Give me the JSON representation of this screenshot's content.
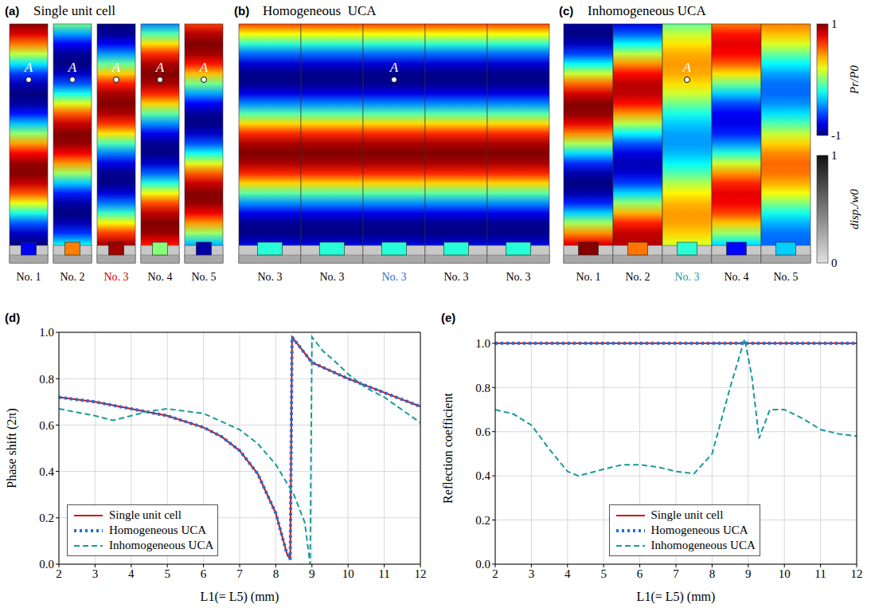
{
  "figure": {
    "panels": [
      {
        "letter": "(a)",
        "title": "Single unit cell",
        "cells": [
          {
            "label": "No. 1",
            "color": "#000000",
            "point": "A"
          },
          {
            "label": "No. 2",
            "color": "#000000",
            "point": "A"
          },
          {
            "label": "No. 3",
            "color": "#d00000",
            "point": "A"
          },
          {
            "label": "No. 4",
            "color": "#000000",
            "point": "A"
          },
          {
            "label": "No. 5",
            "color": "#000000",
            "point": "A"
          }
        ]
      },
      {
        "letter": "(b)",
        "title": "Homogeneous  UCA",
        "cells": [
          {
            "label": "No. 3",
            "color": "#000000"
          },
          {
            "label": "No. 3",
            "color": "#000000"
          },
          {
            "label": "No. 3",
            "color": "#1f6fd1",
            "point": "A"
          },
          {
            "label": "No. 3",
            "color": "#000000"
          },
          {
            "label": "No. 3",
            "color": "#000000"
          }
        ]
      },
      {
        "letter": "(c)",
        "title": "Inhomogeneous UCA",
        "cells": [
          {
            "label": "No. 1",
            "color": "#000000"
          },
          {
            "label": "No. 2",
            "color": "#000000"
          },
          {
            "label": "No. 3",
            "color": "#1a9a9a",
            "point": "A"
          },
          {
            "label": "No. 4",
            "color": "#000000"
          },
          {
            "label": "No. 5",
            "color": "#000000"
          }
        ]
      }
    ],
    "colorbars": [
      {
        "label": "Pr/P0",
        "ticks": [
          1,
          -1
        ]
      },
      {
        "label": "disp./w0",
        "ticks": [
          1,
          0
        ]
      }
    ]
  },
  "chart_data": [
    {
      "type": "line",
      "title": "(d)",
      "x_label": "L1(= L5) (mm)",
      "y_label": "Phase shift (2π)",
      "xlim": [
        2,
        12
      ],
      "xticks": [
        2,
        3,
        4,
        5,
        6,
        7,
        8,
        9,
        10,
        11,
        12
      ],
      "ylim": [
        0,
        1
      ],
      "yticks": [
        {
          "value": 0,
          "label": "0.0"
        },
        {
          "value": 0.2,
          "label": "0.2"
        },
        {
          "value": 0.4,
          "label": "0.4"
        },
        {
          "value": 0.6,
          "label": "0.6"
        },
        {
          "value": 0.8,
          "label": "0.8"
        },
        {
          "value": 1,
          "label": "1.0"
        }
      ],
      "grid": true,
      "legend": "lower left",
      "series": [
        {
          "name": "Single unit cell",
          "color": "#d01010",
          "line_style": "solid",
          "x": [
            2,
            3,
            4,
            5,
            6,
            6.5,
            7,
            7.5,
            8,
            8.3,
            8.4,
            8.45,
            9,
            10,
            11,
            12
          ],
          "values": [
            0.72,
            0.7,
            0.67,
            0.64,
            0.59,
            0.55,
            0.49,
            0.39,
            0.22,
            0.05,
            0.02,
            0.98,
            0.87,
            0.8,
            0.74,
            0.68
          ]
        },
        {
          "name": "Homogeneous UCA",
          "color": "#1f6fe0",
          "line_style": "dotted",
          "x": [
            2,
            3,
            4,
            5,
            6,
            6.5,
            7,
            7.5,
            8,
            8.3,
            8.4,
            8.45,
            9,
            10,
            11,
            12
          ],
          "values": [
            0.72,
            0.7,
            0.67,
            0.64,
            0.59,
            0.55,
            0.49,
            0.39,
            0.22,
            0.05,
            0.02,
            0.98,
            0.87,
            0.8,
            0.74,
            0.68
          ]
        },
        {
          "name": "Inhomogeneous UCA",
          "color": "#1a9a9a",
          "line_style": "dashed",
          "x": [
            2,
            3,
            3.5,
            4,
            4.5,
            5,
            6,
            7,
            7.5,
            8,
            8.5,
            8.8,
            8.95,
            9,
            9.3,
            9.6,
            10,
            10.5,
            11,
            12
          ],
          "values": [
            0.67,
            0.64,
            0.62,
            0.64,
            0.66,
            0.67,
            0.65,
            0.58,
            0.52,
            0.43,
            0.3,
            0.18,
            0.0,
            0.98,
            0.92,
            0.88,
            0.82,
            0.76,
            0.72,
            0.61
          ]
        }
      ]
    },
    {
      "type": "line",
      "title": "(e)",
      "x_label": "L1(= L5) (mm)",
      "y_label": "Reflection coefficient",
      "xlim": [
        2,
        12
      ],
      "xticks": [
        2,
        3,
        4,
        5,
        6,
        7,
        8,
        9,
        10,
        11,
        12
      ],
      "ylim": [
        0,
        1.05
      ],
      "yticks": [
        {
          "value": 0,
          "label": "0.0"
        },
        {
          "value": 0.2,
          "label": "0.2"
        },
        {
          "value": 0.4,
          "label": "0.4"
        },
        {
          "value": 0.6,
          "label": "0.6"
        },
        {
          "value": 0.8,
          "label": "0.8"
        },
        {
          "value": 1,
          "label": "1.0"
        }
      ],
      "grid": true,
      "legend": "lower center",
      "series": [
        {
          "name": "Single unit cell",
          "color": "#d01010",
          "line_style": "solid",
          "x": [
            2,
            12
          ],
          "values": [
            1,
            1
          ]
        },
        {
          "name": "Homogeneous UCA",
          "color": "#1f6fe0",
          "line_style": "dotted",
          "x": [
            2,
            12
          ],
          "values": [
            1,
            1
          ]
        },
        {
          "name": "Inhomogeneous UCA",
          "color": "#1a9a9a",
          "line_style": "dashed",
          "x": [
            2,
            2.5,
            3,
            3.5,
            4,
            4.3,
            5,
            5.5,
            6,
            6.5,
            7,
            7.5,
            8,
            8.5,
            8.9,
            9.1,
            9.3,
            9.6,
            10,
            10.5,
            11,
            11.5,
            12
          ],
          "values": [
            0.7,
            0.68,
            0.63,
            0.52,
            0.42,
            0.4,
            0.43,
            0.45,
            0.45,
            0.44,
            0.42,
            0.41,
            0.5,
            0.8,
            1.02,
            0.85,
            0.57,
            0.7,
            0.7,
            0.66,
            0.61,
            0.59,
            0.58
          ]
        }
      ]
    }
  ]
}
